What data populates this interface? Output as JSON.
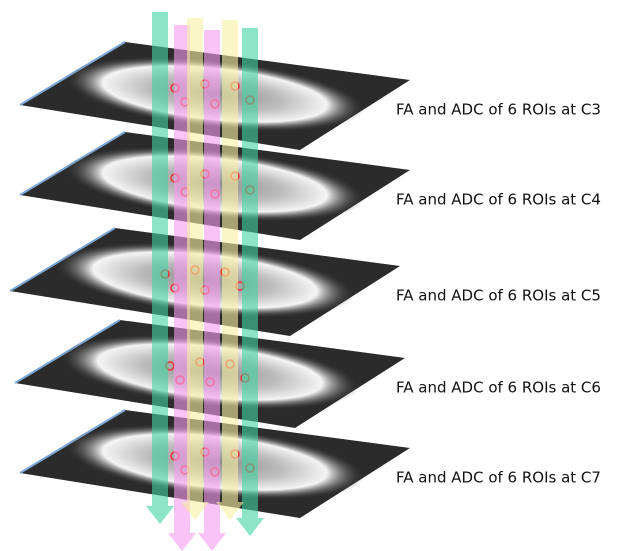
{
  "labels": [
    "FA and ADC of 6 ROIs at C3",
    "FA and ADC of 6 ROIs at C4",
    "FA and ADC of 6 ROIs at C5",
    "FA and ADC of 6 ROIs at C6",
    "FA and ADC of 6 ROIs at C7"
  ]
}
